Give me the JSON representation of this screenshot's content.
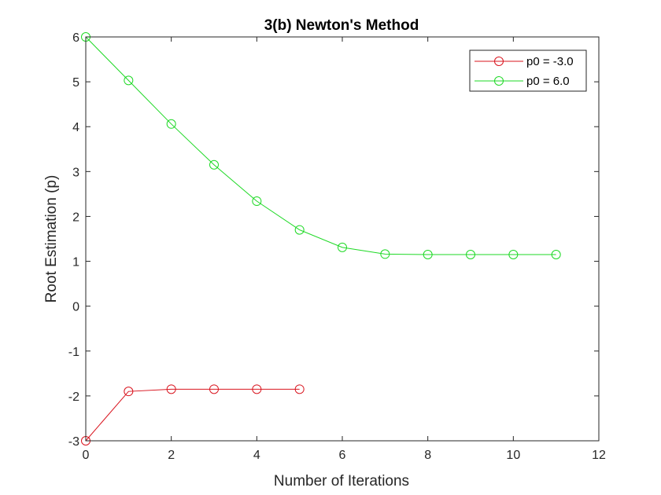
{
  "chart_data": {
    "type": "line",
    "title": "3(b) Newton's Method",
    "xlabel": "Number of Iterations",
    "ylabel": "Root Estimation (p)",
    "xlim": [
      0,
      12
    ],
    "ylim": [
      -3,
      6
    ],
    "xticks": [
      0,
      2,
      4,
      6,
      8,
      10,
      12
    ],
    "yticks": [
      -3,
      -2,
      -1,
      0,
      1,
      2,
      3,
      4,
      5,
      6
    ],
    "grid": false,
    "legend_position": "top-right",
    "marker": "circle",
    "series": [
      {
        "name": "p0 = -3.0",
        "color": "#d9141e",
        "x": [
          0,
          1,
          2,
          3,
          4,
          5
        ],
        "y": [
          -3.0,
          -1.9,
          -1.85,
          -1.85,
          -1.85,
          -1.85
        ]
      },
      {
        "name": "p0 = 6.0",
        "color": "#1ed925",
        "x": [
          0,
          1,
          2,
          3,
          4,
          5,
          6,
          7,
          8,
          9,
          10,
          11
        ],
        "y": [
          6.0,
          5.03,
          4.06,
          3.15,
          2.34,
          1.7,
          1.31,
          1.16,
          1.15,
          1.15,
          1.15,
          1.15
        ]
      }
    ]
  }
}
